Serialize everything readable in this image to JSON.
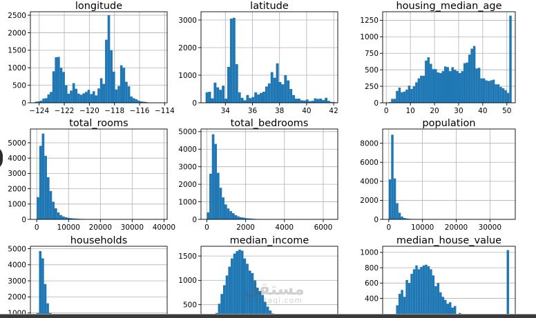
{
  "watermark": {
    "logo": "مستقل",
    "text": "mostaql.com"
  },
  "colors": {
    "bar": "#1f77b4",
    "grid": "#b0b0b0",
    "axis": "#000000",
    "text": "#000000"
  },
  "chart_data": [
    {
      "type": "bar",
      "title": "longitude",
      "xlim": [
        -124.7,
        -113.8
      ],
      "ylim": [
        0,
        2600
      ],
      "xticks": [
        -124,
        -122,
        -120,
        -118,
        -116,
        -114
      ],
      "yticks": [
        0,
        500,
        1000,
        1500,
        2000,
        2500
      ],
      "bin_start": -124.35,
      "bin_width": 0.2,
      "values": [
        30,
        40,
        60,
        120,
        130,
        240,
        310,
        900,
        1300,
        1310,
        1000,
        880,
        500,
        260,
        350,
        560,
        400,
        260,
        230,
        270,
        310,
        370,
        250,
        330,
        210,
        410,
        700,
        540,
        1800,
        2500,
        1500,
        890,
        380,
        480,
        1070,
        1000,
        600,
        470,
        180,
        130,
        100,
        60,
        40,
        30,
        20,
        10,
        5,
        5
      ]
    },
    {
      "type": "bar",
      "title": "latitude",
      "xlim": [
        32.2,
        42.3
      ],
      "ylim": [
        0,
        3300
      ],
      "xticks": [
        34,
        36,
        38,
        40,
        42
      ],
      "yticks": [
        0,
        1000,
        2000,
        3000
      ],
      "bin_start": 32.54,
      "bin_width": 0.2,
      "values": [
        380,
        400,
        160,
        730,
        560,
        470,
        620,
        150,
        1300,
        3050,
        3080,
        1400,
        380,
        180,
        90,
        280,
        170,
        210,
        380,
        300,
        360,
        400,
        590,
        700,
        1110,
        910,
        1430,
        750,
        670,
        1000,
        810,
        500,
        280,
        150,
        150,
        90,
        80,
        120,
        60,
        70,
        160,
        140,
        150,
        100,
        180,
        70,
        30,
        20,
        15,
        10
      ]
    },
    {
      "type": "bar",
      "title": "housing_median_age",
      "xlim": [
        -1.5,
        53.5
      ],
      "ylim": [
        0,
        1380
      ],
      "xticks": [
        0,
        10,
        20,
        30,
        40,
        50
      ],
      "yticks": [
        0,
        250,
        500,
        750,
        1000,
        1250
      ],
      "bin_start": 1,
      "bin_width": 1,
      "values": [
        10,
        60,
        60,
        180,
        230,
        160,
        170,
        200,
        260,
        210,
        250,
        310,
        370,
        410,
        410,
        640,
        690,
        590,
        510,
        510,
        460,
        450,
        480,
        550,
        540,
        480,
        540,
        500,
        480,
        450,
        480,
        600,
        610,
        730,
        820,
        860,
        520,
        530,
        370,
        370,
        340,
        330,
        340,
        350,
        280,
        280,
        240,
        220,
        190,
        150,
        1320
      ]
    },
    {
      "type": "bar",
      "title": "total_rooms",
      "xlim": [
        -2000,
        41000
      ],
      "ylim": [
        0,
        5900
      ],
      "xticks": [
        0,
        10000,
        20000,
        30000,
        40000
      ],
      "yticks": [
        0,
        1000,
        2000,
        3000,
        4000,
        5000
      ],
      "bin_start": 0,
      "bin_width": 800,
      "values": [
        1450,
        4800,
        5600,
        4150,
        2750,
        1850,
        1150,
        720,
        450,
        280,
        190,
        140,
        100,
        80,
        60,
        50,
        40,
        30,
        25,
        20,
        15,
        12,
        10,
        8,
        6,
        5,
        4,
        3,
        3,
        2,
        2,
        2,
        1,
        1,
        1,
        1,
        1,
        1,
        1,
        1,
        1,
        1,
        1,
        1,
        1,
        1,
        1,
        1,
        1,
        1
      ]
    },
    {
      "type": "bar",
      "title": "total_bedrooms",
      "xlim": [
        -300,
        6750
      ],
      "ylim": [
        0,
        5150
      ],
      "xticks": [
        0,
        2000,
        4000,
        6000
      ],
      "yticks": [
        0,
        1000,
        2000,
        3000,
        4000,
        5000
      ],
      "bin_start": 0,
      "bin_width": 130,
      "values": [
        400,
        2600,
        4850,
        4300,
        2650,
        1800,
        1250,
        850,
        620,
        470,
        350,
        240,
        170,
        120,
        100,
        70,
        55,
        45,
        35,
        25,
        20,
        15,
        12,
        10,
        8,
        6,
        5,
        4,
        3,
        3,
        2,
        2,
        2,
        1,
        1,
        1,
        1,
        1,
        1,
        1,
        1,
        1,
        1,
        1,
        1,
        1,
        1,
        1,
        1,
        1
      ]
    },
    {
      "type": "bar",
      "title": "population",
      "xlim": [
        -1800,
        37500
      ],
      "ylim": [
        0,
        9500
      ],
      "xticks": [
        0,
        10000,
        20000,
        30000
      ],
      "yticks": [
        0,
        2000,
        4000,
        6000,
        8000
      ],
      "bin_start": 0,
      "bin_width": 715,
      "values": [
        4200,
        8900,
        4300,
        1700,
        700,
        300,
        150,
        90,
        60,
        40,
        30,
        20,
        15,
        10,
        8,
        6,
        5,
        4,
        3,
        3,
        2,
        2,
        2,
        1,
        1,
        1,
        1,
        1,
        1,
        1,
        1,
        1,
        1,
        1,
        1,
        1,
        1,
        1,
        1,
        1,
        1,
        1,
        1,
        1,
        1,
        1,
        1,
        1,
        1,
        1
      ]
    },
    {
      "type": "bar",
      "title": "households",
      "xlim": [
        -300,
        6400
      ],
      "ylim": [
        0,
        5150
      ],
      "xticks": [],
      "yticks": [
        0,
        1000,
        2000,
        3000,
        4000,
        5000
      ],
      "bin_start": 0,
      "bin_width": 122,
      "values": [
        1000,
        4850,
        4400,
        2800,
        1600,
        1000,
        600,
        380,
        260,
        180,
        120,
        90,
        70,
        50,
        40,
        30,
        25,
        20,
        15,
        12,
        10,
        8,
        6,
        5,
        4,
        3,
        3,
        2,
        2,
        2,
        1,
        1,
        1,
        1,
        1,
        1,
        1,
        1,
        1,
        1,
        1,
        1,
        1,
        1,
        1,
        1,
        1,
        1,
        1,
        1
      ]
    },
    {
      "type": "bar",
      "title": "median_income",
      "xlim": [
        -0.3,
        15.8
      ],
      "ylim": [
        0,
        1700
      ],
      "xticks": [],
      "yticks": [
        500,
        1000,
        1500
      ],
      "bin_start": 0.5,
      "bin_width": 0.3,
      "values": [
        100,
        150,
        220,
        330,
        520,
        720,
        900,
        1100,
        1280,
        1450,
        1550,
        1600,
        1630,
        1610,
        1450,
        1340,
        1200,
        1150,
        1000,
        850,
        780,
        700,
        560,
        460,
        380,
        320,
        270,
        230,
        190,
        160,
        120,
        100,
        80,
        60,
        50,
        40,
        30,
        25,
        20,
        15,
        12,
        10,
        8,
        6,
        5,
        4,
        3,
        3,
        2,
        60
      ]
    },
    {
      "type": "bar",
      "title": "median_house_value",
      "xlim": [
        -10000,
        525000
      ],
      "ylim": [
        0,
        1080
      ],
      "xticks": [],
      "yticks": [
        400,
        600,
        800,
        1000
      ],
      "bin_start": 15000,
      "bin_width": 9700,
      "values": [
        20,
        60,
        160,
        310,
        460,
        510,
        420,
        640,
        600,
        720,
        780,
        830,
        780,
        810,
        830,
        840,
        820,
        780,
        700,
        560,
        600,
        480,
        420,
        380,
        330,
        350,
        280,
        300,
        180,
        210,
        160,
        170,
        160,
        130,
        110,
        110,
        120,
        90,
        100,
        70,
        60,
        60,
        50,
        40,
        40,
        30,
        30,
        25,
        20,
        1030
      ]
    }
  ]
}
